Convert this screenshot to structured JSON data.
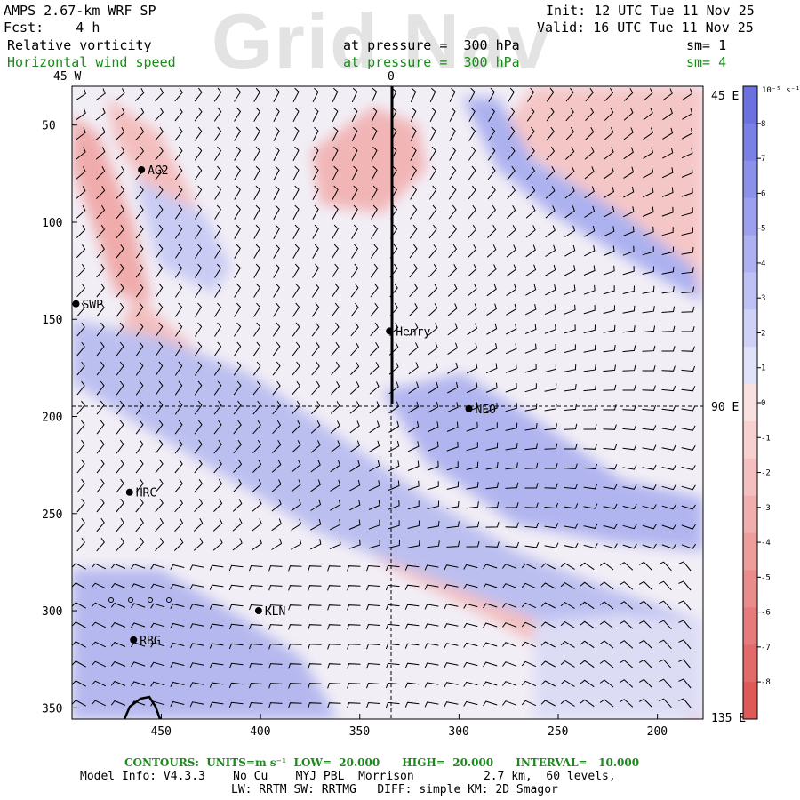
{
  "header": {
    "title": "AMPS 2.67-km WRF SP",
    "fcst": "Fcst:    4 h",
    "init": "Init: 12 UTC Tue 11 Nov 25",
    "valid": "Valid: 16 UTC Tue 11 Nov 25",
    "var1": "Relative vorticity",
    "var1_level": "at pressure =  300 hPa",
    "var1_sm": "sm= 1",
    "var2": "Horizontal wind speed",
    "var2_level": "at pressure =  300 hPa",
    "var2_sm": "sm= 4",
    "watermark": "Grid Nav"
  },
  "map": {
    "meridian_labels": {
      "top_left": "45 W",
      "top_mid": "0",
      "right_top": "45 E",
      "right_mid": "90 E",
      "right_bottom": "135 E"
    },
    "stations": [
      {
        "id": "AG2"
      },
      {
        "id": "SWP"
      },
      {
        "id": "Henry"
      },
      {
        "id": "NEO"
      },
      {
        "id": "HRC"
      },
      {
        "id": "KLN"
      },
      {
        "id": "RBG"
      }
    ],
    "x_axis": {
      "ticks": [
        "450",
        "400",
        "350",
        "300",
        "250",
        "200"
      ]
    },
    "y_axis": {
      "ticks": [
        "50",
        "100",
        "150",
        "200",
        "250",
        "300",
        "350"
      ]
    }
  },
  "colorbar": {
    "unit": "10⁻⁵ s⁻¹",
    "labels": [
      "8",
      "7",
      "6",
      "5",
      "4",
      "3",
      "2",
      "1",
      "0",
      "-1",
      "-2",
      "-3",
      "-4",
      "-5",
      "-6",
      "-7",
      "-8"
    ],
    "colors": {
      "positive": [
        "#6b72e0",
        "#7a80e6",
        "#8b90ea",
        "#9ca0ee",
        "#adb1f1",
        "#bec1f4",
        "#cfd1f7",
        "#e0e2fa"
      ],
      "negative": [
        "#fae1e1",
        "#f7d0d0",
        "#f4bfbf",
        "#f1aeae",
        "#ee9d9d",
        "#eb8c8c",
        "#e77b7b",
        "#e36a6a",
        "#df5959"
      ]
    }
  },
  "footer": {
    "contours": "CONTOURS:  UNITS=m s⁻¹  LOW=  20.000      HIGH=  20.000      INTERVAL=   10.000",
    "model_info": "Model Info: V4.3.3    No Cu    MYJ PBL  Morrison          2.7 km,  60 levels,",
    "physics": "LW: RRTM SW: RRTMG   DIFF: simple KM: 2D Smagor"
  }
}
